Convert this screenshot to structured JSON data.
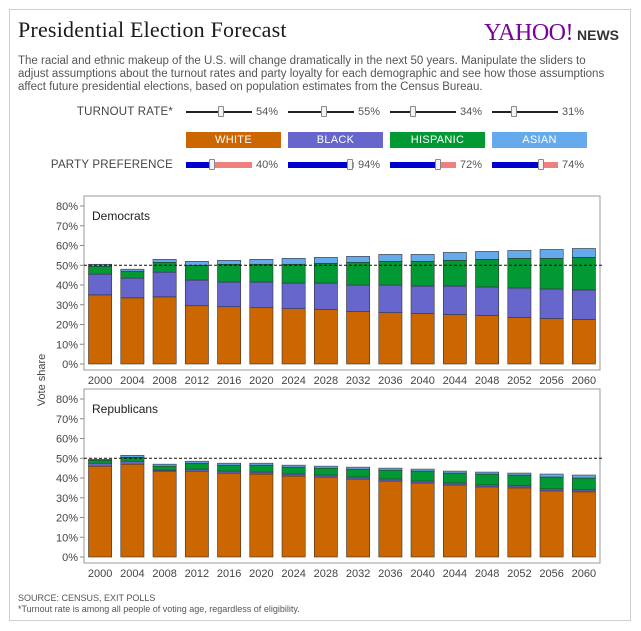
{
  "header": {
    "title": "Presidential Election Forecast",
    "logo_main": "YAHOO!",
    "logo_sub": "NEWS",
    "description": "The racial and ethnic makeup of the U.S. will change dramatically in the next 50 years. Manipulate the sliders to adjust assumptions about the turnout rates and party loyalty for each demographic and see how those assumptions affect future presidential elections, based on population estimates from the Census Bureau."
  },
  "controls": {
    "turnout_label": "TURNOUT RATE*",
    "preference_label": "PARTY PREFERENCE",
    "groups": [
      {
        "name": "WHITE",
        "color": "#cc6600",
        "turnout": 54,
        "turnout_text": "54%",
        "preference": 40,
        "preference_text": "40%"
      },
      {
        "name": "BLACK",
        "color": "#6666cc",
        "turnout": 55,
        "turnout_text": "55%",
        "preference": 94,
        "preference_text": "94%"
      },
      {
        "name": "HISPANIC",
        "color": "#009933",
        "turnout": 34,
        "turnout_text": "34%",
        "preference": 72,
        "preference_text": "72%"
      },
      {
        "name": "ASIAN",
        "color": "#66aaee",
        "turnout": 31,
        "turnout_text": "31%",
        "preference": 74,
        "preference_text": "74%"
      }
    ],
    "dem_color": "#0000cc",
    "rep_color": "#f08080"
  },
  "chart_data": [
    {
      "type": "bar",
      "stacked": true,
      "title": "Democrats",
      "ylabel": "Vote share",
      "ylim": [
        0,
        80
      ],
      "yticks": [
        "0%",
        "10%",
        "20%",
        "30%",
        "40%",
        "50%",
        "60%",
        "70%",
        "80%"
      ],
      "reference_line": 50,
      "categories": [
        "2000",
        "2004",
        "2008",
        "2012",
        "2016",
        "2020",
        "2024",
        "2028",
        "2032",
        "2036",
        "2040",
        "2044",
        "2048",
        "2052",
        "2056",
        "2060"
      ],
      "series": [
        {
          "name": "WHITE",
          "values": [
            35,
            33.5,
            34,
            29.5,
            29,
            28.5,
            28,
            27.5,
            26.5,
            26,
            25.5,
            25,
            24.5,
            23.5,
            23,
            22.5
          ]
        },
        {
          "name": "BLACK",
          "values": [
            10.5,
            10,
            12.5,
            13,
            12.5,
            13,
            13,
            13.5,
            13.5,
            14,
            14,
            14.5,
            14.5,
            15,
            15,
            15
          ]
        },
        {
          "name": "HISPANIC",
          "values": [
            4,
            3.5,
            5,
            7.5,
            9,
            9,
            9.5,
            10,
            11.5,
            12,
            12.5,
            13,
            14,
            15,
            15.5,
            16.5
          ]
        },
        {
          "name": "ASIAN",
          "values": [
            1,
            1,
            1.5,
            2,
            2,
            2.5,
            3,
            3,
            3,
            3.5,
            3.5,
            4,
            4,
            4,
            4.5,
            4.5
          ]
        }
      ]
    },
    {
      "type": "bar",
      "stacked": true,
      "title": "Republicans",
      "ylabel": "Vote share",
      "ylim": [
        0,
        80
      ],
      "yticks": [
        "0%",
        "10%",
        "20%",
        "30%",
        "40%",
        "50%",
        "60%",
        "70%",
        "80%"
      ],
      "reference_line": 50,
      "categories": [
        "2000",
        "2004",
        "2008",
        "2012",
        "2016",
        "2020",
        "2024",
        "2028",
        "2032",
        "2036",
        "2040",
        "2044",
        "2048",
        "2052",
        "2056",
        "2060"
      ],
      "series": [
        {
          "name": "WHITE",
          "values": [
            46,
            47,
            43.5,
            43.5,
            42.5,
            42,
            41,
            40.5,
            39.5,
            38.5,
            37.5,
            36.5,
            35.5,
            35,
            33.5,
            33
          ]
        },
        {
          "name": "BLACK",
          "values": [
            1.5,
            1.5,
            0.5,
            1,
            1,
            1,
            1,
            1,
            1,
            1,
            1,
            1,
            1,
            1,
            1,
            1
          ]
        },
        {
          "name": "HISPANIC",
          "values": [
            1.5,
            2,
            2,
            3,
            3,
            3.5,
            3.5,
            3.5,
            4,
            4.5,
            5,
            5,
            5.5,
            5.5,
            6,
            6
          ]
        },
        {
          "name": "ASIAN",
          "values": [
            0.5,
            1,
            1,
            1,
            1,
            1,
            1,
            1,
            1,
            1,
            1,
            1,
            1,
            1,
            1.5,
            1.5
          ]
        }
      ]
    }
  ],
  "footer": {
    "source": "SOURCE: CENSUS, EXIT POLLS",
    "note": "*Turnout rate is among all people of voting age, regardless of eligibility."
  }
}
